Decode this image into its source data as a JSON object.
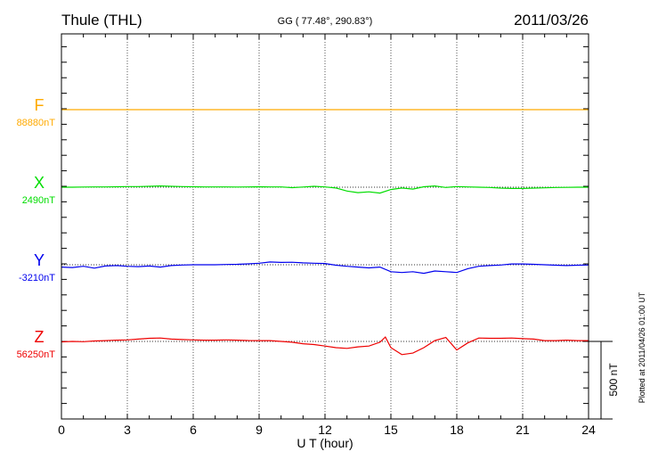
{
  "chart_data": {
    "type": "line",
    "title": "Thule (THL)",
    "subtitle": "GG ( 77.48°, 290.83°)",
    "date": "2011/03/26",
    "xlabel": "U T (hour)",
    "xlim": [
      0,
      24
    ],
    "x_ticks": [
      "0",
      "3",
      "6",
      "9",
      "12",
      "15",
      "18",
      "21",
      "24"
    ],
    "grid": true,
    "scale_bar_label": "500 nT",
    "scale_bar_nT": 500,
    "footer": "Plotted at 2011/04/26 01:00 UT",
    "series": [
      {
        "name": "F",
        "baseline_label": "88880nT",
        "color": "#ffaa00",
        "x": [
          0,
          24
        ],
        "y": [
          0,
          0
        ]
      },
      {
        "name": "X",
        "baseline_label": "2490nT",
        "color": "#00dd00",
        "x": [
          0,
          0.5,
          1,
          1.5,
          2,
          2.5,
          3,
          3.5,
          4,
          4.5,
          5,
          5.5,
          6,
          6.5,
          7,
          7.5,
          8,
          8.5,
          9,
          9.5,
          10,
          10.5,
          11,
          11.5,
          12,
          12.5,
          13,
          13.5,
          14,
          14.5,
          15,
          15.5,
          16,
          16.5,
          17,
          17.5,
          18,
          18.5,
          19,
          19.5,
          20,
          20.5,
          21,
          21.5,
          22,
          22.5,
          23,
          23.5,
          24
        ],
        "y": [
          0,
          0,
          1,
          2,
          2,
          3,
          4,
          4,
          6,
          8,
          6,
          4,
          3,
          2,
          2,
          2,
          1,
          2,
          3,
          2,
          2,
          -3,
          1,
          6,
          2,
          -5,
          -25,
          -35,
          -30,
          -38,
          -15,
          -5,
          -12,
          3,
          8,
          -2,
          4,
          2,
          0,
          -2,
          -6,
          -8,
          -8,
          -6,
          -4,
          -2,
          -1,
          0,
          0
        ]
      },
      {
        "name": "Y",
        "baseline_label": "-3210nT",
        "color": "#0000ee",
        "x": [
          0,
          0.5,
          1,
          1.5,
          2,
          2.5,
          3,
          3.5,
          4,
          4.5,
          5,
          5.5,
          6,
          6.5,
          7,
          7.5,
          8,
          8.5,
          9,
          9.5,
          10,
          10.5,
          11,
          11.5,
          12,
          12.5,
          13,
          13.5,
          14,
          14.5,
          15,
          15.5,
          16,
          16.5,
          17,
          17.5,
          18,
          18.5,
          19,
          19.5,
          20,
          20.5,
          21,
          21.5,
          22,
          22.5,
          23,
          23.5,
          24
        ],
        "y": [
          -15,
          -18,
          -10,
          -22,
          -8,
          -5,
          -10,
          -12,
          -8,
          -15,
          -5,
          -2,
          0,
          0,
          0,
          2,
          3,
          6,
          10,
          18,
          15,
          16,
          12,
          10,
          8,
          -3,
          -10,
          -15,
          -20,
          -15,
          -45,
          -50,
          -45,
          -55,
          -40,
          -45,
          -50,
          -25,
          -10,
          -5,
          -2,
          5,
          5,
          3,
          0,
          -3,
          -5,
          -3,
          -2
        ]
      },
      {
        "name": "Z",
        "baseline_label": "56250nT",
        "color": "#ee0000",
        "x": [
          0,
          0.5,
          1,
          1.5,
          2,
          2.5,
          3,
          3.5,
          4,
          4.5,
          5,
          5.5,
          6,
          6.5,
          7,
          7.5,
          8,
          8.5,
          9,
          9.5,
          10,
          10.5,
          11,
          11.5,
          12,
          12.5,
          13,
          13.5,
          14,
          14.5,
          14.75,
          15,
          15.5,
          16,
          16.5,
          17,
          17.5,
          18,
          18.5,
          19,
          19.5,
          20,
          20.5,
          21,
          21.5,
          22,
          22.5,
          23,
          23.5,
          24
        ],
        "y": [
          -3,
          0,
          -2,
          3,
          5,
          8,
          10,
          15,
          20,
          22,
          15,
          12,
          10,
          8,
          8,
          10,
          8,
          6,
          5,
          5,
          0,
          -5,
          -15,
          -20,
          -30,
          -40,
          -45,
          -35,
          -30,
          -5,
          28,
          -40,
          -85,
          -75,
          -40,
          5,
          25,
          -55,
          -10,
          22,
          20,
          20,
          22,
          18,
          15,
          5,
          5,
          8,
          5,
          5
        ]
      }
    ]
  }
}
